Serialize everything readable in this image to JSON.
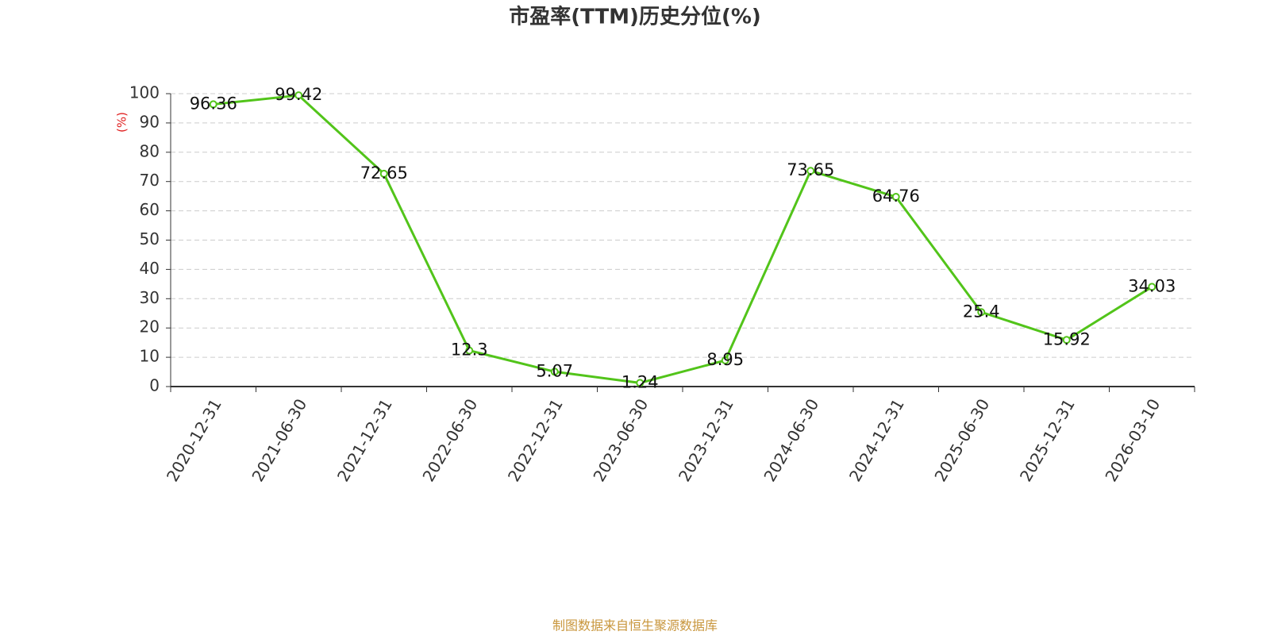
{
  "chart_data": {
    "type": "line",
    "title": "市盈率(TTM)历史分位(%)",
    "y_label": "(%)",
    "categories": [
      "2020-12-31",
      "2021-06-30",
      "2021-12-31",
      "2022-06-30",
      "2022-12-31",
      "2023-06-30",
      "2023-12-31",
      "2024-06-30",
      "2024-12-31",
      "2025-06-30",
      "2025-12-31",
      "2026-03-10"
    ],
    "series": [
      {
        "name": "市盈率(TTM)历史分位",
        "color": "#52c41a",
        "values": [
          96.36,
          99.42,
          72.65,
          12.3,
          5.07,
          1.24,
          8.95,
          73.65,
          64.76,
          25.4,
          15.92,
          34.03
        ]
      }
    ],
    "ylim": [
      0,
      100
    ],
    "yticks": [
      0,
      10,
      20,
      30,
      40,
      50,
      60,
      70,
      80,
      90,
      100
    ],
    "grid": true
  },
  "footer": "制图数据来自恒生聚源数据库"
}
